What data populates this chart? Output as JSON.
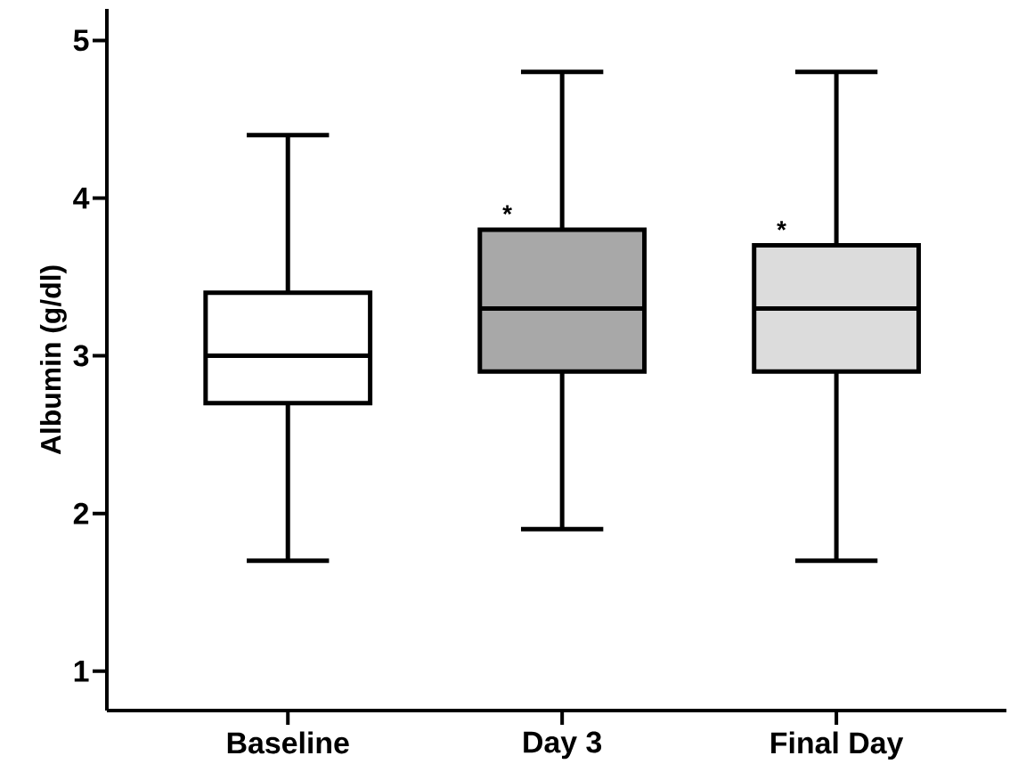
{
  "chart_data": {
    "type": "box",
    "ylabel": "Albumin (g/dl)",
    "categories": [
      "Baseline",
      "Day 3",
      "Final Day"
    ],
    "boxes": [
      {
        "low": 1.7,
        "q1": 2.7,
        "median": 3.0,
        "q3": 3.4,
        "high": 4.4
      },
      {
        "low": 1.9,
        "q1": 2.9,
        "median": 3.3,
        "q3": 3.8,
        "high": 4.8
      },
      {
        "low": 1.7,
        "q1": 2.9,
        "median": 3.3,
        "q3": 3.7,
        "high": 4.8
      }
    ],
    "colors": [
      "#ffffff",
      "#a8a8a8",
      "#dcdcdc"
    ],
    "ylim": [
      0.75,
      5.2
    ],
    "yticks": [
      1,
      2,
      3,
      4,
      5
    ],
    "annotations": [
      {
        "text": "*",
        "x": "Day 3",
        "y": 3.9
      },
      {
        "text": "*",
        "x": "Final Day",
        "y": 3.8
      }
    ]
  }
}
